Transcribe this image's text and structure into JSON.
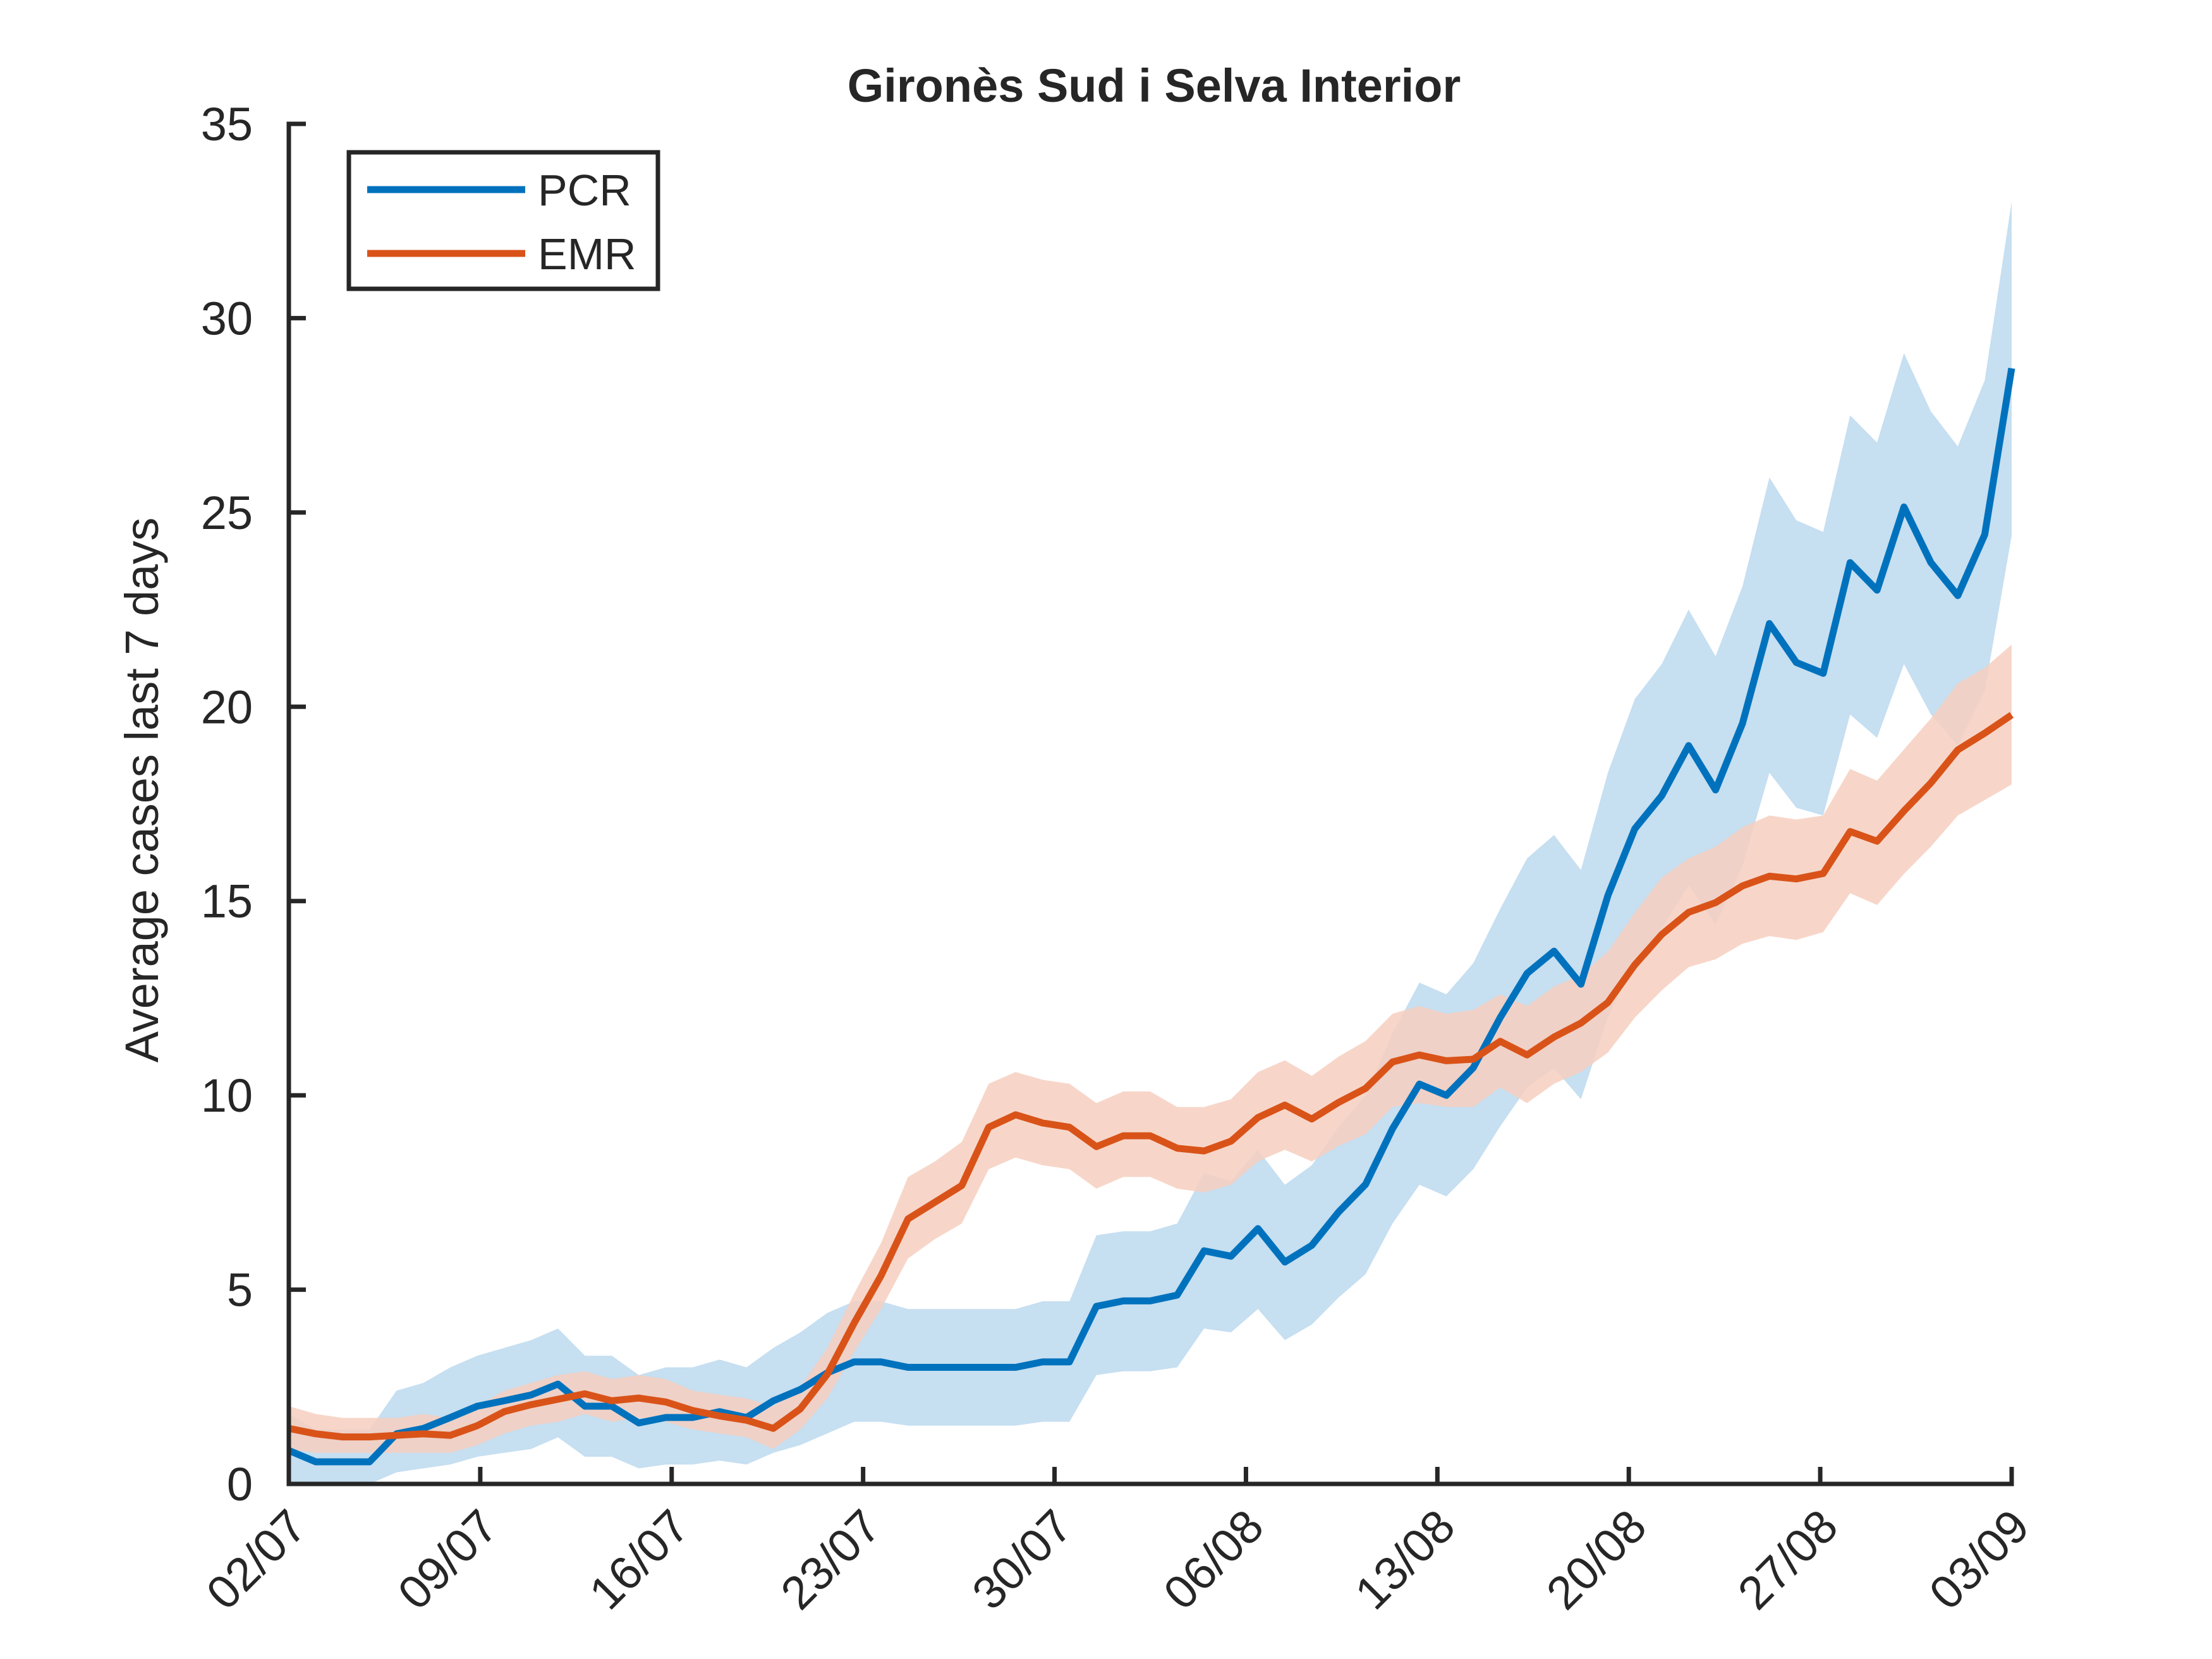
{
  "chart_data": {
    "type": "line",
    "title": "Gironès Sud i Selva Interior",
    "ylabel": "Average cases last 7 days",
    "xlabel": "",
    "ylim": [
      0,
      35
    ],
    "yticks": [
      0,
      5,
      10,
      15,
      20,
      25,
      30,
      35
    ],
    "xticks": [
      "02/07",
      "09/07",
      "16/07",
      "23/07",
      "30/07",
      "06/08",
      "13/08",
      "20/08",
      "27/08",
      "03/09"
    ],
    "x_start": "02/07",
    "x_end": "03/09",
    "grid": false,
    "legend_position": "top-left",
    "series": [
      {
        "name": "PCR",
        "color": "#0072bd",
        "band_color": "#bcd9ee",
        "values": [
          0.86,
          0.57,
          0.57,
          0.57,
          1.29,
          1.43,
          1.71,
          2.0,
          2.14,
          2.29,
          2.57,
          2.0,
          2.0,
          1.57,
          1.71,
          1.71,
          1.86,
          1.71,
          2.14,
          2.43,
          2.86,
          3.14,
          3.14,
          3.0,
          3.0,
          3.0,
          3.0,
          3.0,
          3.14,
          3.14,
          4.57,
          4.71,
          4.71,
          4.86,
          6.0,
          5.86,
          6.57,
          5.71,
          6.14,
          7.0,
          7.71,
          9.14,
          10.29,
          10.0,
          10.71,
          12.0,
          13.14,
          13.71,
          12.86,
          15.14,
          16.86,
          17.71,
          19.0,
          17.86,
          19.57,
          22.14,
          21.14,
          20.86,
          23.71,
          23.0,
          25.14,
          23.71,
          22.86,
          24.43,
          28.71
        ],
        "lower": [
          0.0,
          0.0,
          0.0,
          0.0,
          0.3,
          0.4,
          0.5,
          0.7,
          0.8,
          0.9,
          1.2,
          0.7,
          0.7,
          0.4,
          0.5,
          0.5,
          0.6,
          0.5,
          0.8,
          1.0,
          1.3,
          1.6,
          1.6,
          1.5,
          1.5,
          1.5,
          1.5,
          1.5,
          1.6,
          1.6,
          2.8,
          2.9,
          2.9,
          3.0,
          4.0,
          3.9,
          4.5,
          3.7,
          4.1,
          4.8,
          5.4,
          6.7,
          7.7,
          7.4,
          8.1,
          9.2,
          10.2,
          10.7,
          9.9,
          12.0,
          13.5,
          14.3,
          15.4,
          14.4,
          15.9,
          18.3,
          17.4,
          17.2,
          19.8,
          19.2,
          21.1,
          19.8,
          19.0,
          20.4,
          24.4
        ],
        "upper": [
          1.8,
          1.4,
          1.4,
          1.4,
          2.4,
          2.6,
          3.0,
          3.3,
          3.5,
          3.7,
          4.0,
          3.3,
          3.3,
          2.8,
          3.0,
          3.0,
          3.2,
          3.0,
          3.5,
          3.9,
          4.4,
          4.7,
          4.7,
          4.5,
          4.5,
          4.5,
          4.5,
          4.5,
          4.7,
          4.7,
          6.4,
          6.5,
          6.5,
          6.7,
          8.0,
          7.8,
          8.6,
          7.7,
          8.2,
          9.2,
          10.0,
          11.6,
          12.9,
          12.6,
          13.4,
          14.8,
          16.1,
          16.7,
          15.8,
          18.3,
          20.2,
          21.1,
          22.5,
          21.3,
          23.1,
          25.9,
          24.8,
          24.5,
          27.5,
          26.8,
          29.1,
          27.6,
          26.7,
          28.4,
          33.0
        ]
      },
      {
        "name": "EMR",
        "color": "#d95319",
        "band_color": "#f6cfbf",
        "values": [
          1.43,
          1.29,
          1.21,
          1.21,
          1.25,
          1.29,
          1.25,
          1.5,
          1.86,
          2.04,
          2.18,
          2.32,
          2.14,
          2.21,
          2.11,
          1.89,
          1.75,
          1.64,
          1.43,
          1.93,
          2.82,
          4.14,
          5.36,
          6.82,
          7.25,
          7.68,
          9.18,
          9.5,
          9.29,
          9.18,
          8.68,
          8.96,
          8.96,
          8.64,
          8.57,
          8.82,
          9.43,
          9.75,
          9.39,
          9.82,
          10.18,
          10.86,
          11.04,
          10.89,
          10.93,
          11.39,
          11.04,
          11.5,
          11.86,
          12.39,
          13.36,
          14.14,
          14.71,
          14.96,
          15.39,
          15.64,
          15.57,
          15.71,
          16.79,
          16.54,
          17.32,
          18.04,
          18.89,
          19.32,
          19.79
        ],
        "lower": [
          0.9,
          0.8,
          0.8,
          0.8,
          0.8,
          0.8,
          0.8,
          1.0,
          1.3,
          1.5,
          1.6,
          1.8,
          1.6,
          1.7,
          1.6,
          1.4,
          1.3,
          1.2,
          0.9,
          1.4,
          2.2,
          3.4,
          4.5,
          5.8,
          6.3,
          6.7,
          8.1,
          8.4,
          8.2,
          8.1,
          7.6,
          7.9,
          7.9,
          7.6,
          7.5,
          7.7,
          8.3,
          8.6,
          8.3,
          8.7,
          9.0,
          9.7,
          9.8,
          9.7,
          9.7,
          10.2,
          9.8,
          10.3,
          10.6,
          11.1,
          12.0,
          12.7,
          13.3,
          13.5,
          13.9,
          14.1,
          14.0,
          14.2,
          15.2,
          14.9,
          15.7,
          16.4,
          17.2,
          17.6,
          18.0
        ],
        "upper": [
          2.0,
          1.8,
          1.7,
          1.7,
          1.7,
          1.8,
          1.7,
          2.0,
          2.4,
          2.6,
          2.8,
          2.9,
          2.7,
          2.8,
          2.7,
          2.4,
          2.3,
          2.2,
          2.0,
          2.5,
          3.5,
          4.9,
          6.2,
          7.9,
          8.3,
          8.8,
          10.3,
          10.6,
          10.4,
          10.3,
          9.8,
          10.1,
          10.1,
          9.7,
          9.7,
          9.9,
          10.6,
          10.9,
          10.5,
          11.0,
          11.4,
          12.1,
          12.3,
          12.1,
          12.2,
          12.6,
          12.3,
          12.8,
          13.1,
          13.7,
          14.7,
          15.6,
          16.1,
          16.4,
          16.9,
          17.2,
          17.1,
          17.2,
          18.4,
          18.1,
          18.9,
          19.7,
          20.6,
          21.0,
          21.6
        ]
      }
    ]
  }
}
